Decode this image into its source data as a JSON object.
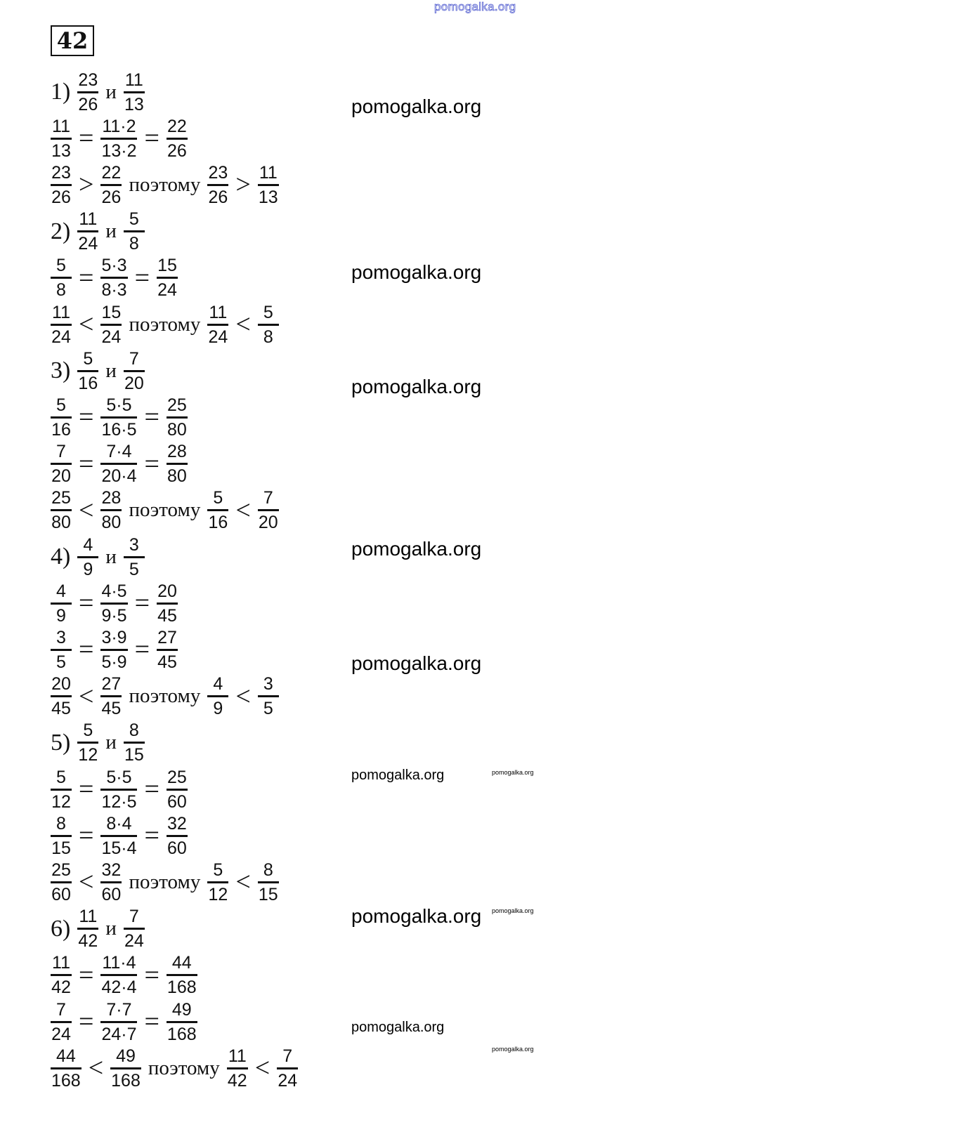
{
  "header_watermark": "pomogalka.org",
  "exercise_number": "42",
  "rows": [
    [
      {
        "t": "label",
        "v": "1)"
      },
      {
        "t": "frac",
        "n": "23",
        "d": "26"
      },
      {
        "t": "word",
        "v": "и"
      },
      {
        "t": "frac",
        "n": "11",
        "d": "13"
      }
    ],
    [
      {
        "t": "frac",
        "n": "11",
        "d": "13"
      },
      {
        "t": "op",
        "v": "="
      },
      {
        "t": "frac",
        "n": "11·2",
        "d": "13·2"
      },
      {
        "t": "op",
        "v": "="
      },
      {
        "t": "frac",
        "n": "22",
        "d": "26"
      }
    ],
    [
      {
        "t": "frac",
        "n": "23",
        "d": "26"
      },
      {
        "t": "op",
        "v": ">"
      },
      {
        "t": "frac",
        "n": "22",
        "d": "26"
      },
      {
        "t": "word",
        "v": "поэтому"
      },
      {
        "t": "frac",
        "n": "23",
        "d": "26"
      },
      {
        "t": "op",
        "v": ">"
      },
      {
        "t": "frac",
        "n": "11",
        "d": "13"
      }
    ],
    [
      {
        "t": "label",
        "v": "2)"
      },
      {
        "t": "frac",
        "n": "11",
        "d": "24"
      },
      {
        "t": "word",
        "v": "и"
      },
      {
        "t": "frac",
        "n": "5",
        "d": "8"
      }
    ],
    [
      {
        "t": "frac",
        "n": "5",
        "d": "8"
      },
      {
        "t": "op",
        "v": "="
      },
      {
        "t": "frac",
        "n": "5·3",
        "d": "8·3"
      },
      {
        "t": "op",
        "v": "="
      },
      {
        "t": "frac",
        "n": "15",
        "d": "24"
      }
    ],
    [
      {
        "t": "frac",
        "n": "11",
        "d": "24"
      },
      {
        "t": "op",
        "v": "<"
      },
      {
        "t": "frac",
        "n": "15",
        "d": "24"
      },
      {
        "t": "word",
        "v": "поэтому"
      },
      {
        "t": "frac",
        "n": "11",
        "d": "24"
      },
      {
        "t": "op",
        "v": "<"
      },
      {
        "t": "frac",
        "n": "5",
        "d": "8"
      }
    ],
    [
      {
        "t": "label",
        "v": "3)"
      },
      {
        "t": "frac",
        "n": "5",
        "d": "16"
      },
      {
        "t": "word",
        "v": "и"
      },
      {
        "t": "frac",
        "n": "7",
        "d": "20"
      }
    ],
    [
      {
        "t": "frac",
        "n": "5",
        "d": "16"
      },
      {
        "t": "op",
        "v": "="
      },
      {
        "t": "frac",
        "n": "5·5",
        "d": "16·5"
      },
      {
        "t": "op",
        "v": "="
      },
      {
        "t": "frac",
        "n": "25",
        "d": "80"
      }
    ],
    [
      {
        "t": "frac",
        "n": "7",
        "d": "20"
      },
      {
        "t": "op",
        "v": "="
      },
      {
        "t": "frac",
        "n": "7·4",
        "d": "20·4"
      },
      {
        "t": "op",
        "v": "="
      },
      {
        "t": "frac",
        "n": "28",
        "d": "80"
      }
    ],
    [
      {
        "t": "frac",
        "n": "25",
        "d": "80"
      },
      {
        "t": "op",
        "v": "<"
      },
      {
        "t": "frac",
        "n": "28",
        "d": "80"
      },
      {
        "t": "word",
        "v": "поэтому"
      },
      {
        "t": "frac",
        "n": "5",
        "d": "16"
      },
      {
        "t": "op",
        "v": "<"
      },
      {
        "t": "frac",
        "n": "7",
        "d": "20"
      }
    ],
    [
      {
        "t": "label",
        "v": "4)"
      },
      {
        "t": "frac",
        "n": "4",
        "d": "9"
      },
      {
        "t": "word",
        "v": "и"
      },
      {
        "t": "frac",
        "n": "3",
        "d": "5"
      }
    ],
    [
      {
        "t": "frac",
        "n": "4",
        "d": "9"
      },
      {
        "t": "op",
        "v": "="
      },
      {
        "t": "frac",
        "n": "4·5",
        "d": "9·5"
      },
      {
        "t": "op",
        "v": "="
      },
      {
        "t": "frac",
        "n": "20",
        "d": "45"
      }
    ],
    [
      {
        "t": "frac",
        "n": "3",
        "d": "5"
      },
      {
        "t": "op",
        "v": "="
      },
      {
        "t": "frac",
        "n": "3·9",
        "d": "5·9"
      },
      {
        "t": "op",
        "v": "="
      },
      {
        "t": "frac",
        "n": "27",
        "d": "45"
      }
    ],
    [
      {
        "t": "frac",
        "n": "20",
        "d": "45"
      },
      {
        "t": "op",
        "v": "<"
      },
      {
        "t": "frac",
        "n": "27",
        "d": "45"
      },
      {
        "t": "word",
        "v": "поэтому"
      },
      {
        "t": "frac",
        "n": "4",
        "d": "9"
      },
      {
        "t": "op",
        "v": "<"
      },
      {
        "t": "frac",
        "n": "3",
        "d": "5"
      }
    ],
    [
      {
        "t": "label",
        "v": "5)"
      },
      {
        "t": "frac",
        "n": "5",
        "d": "12"
      },
      {
        "t": "word",
        "v": "и"
      },
      {
        "t": "frac",
        "n": "8",
        "d": "15"
      }
    ],
    [
      {
        "t": "frac",
        "n": "5",
        "d": "12"
      },
      {
        "t": "op",
        "v": "="
      },
      {
        "t": "frac",
        "n": "5·5",
        "d": "12·5"
      },
      {
        "t": "op",
        "v": "="
      },
      {
        "t": "frac",
        "n": "25",
        "d": "60"
      }
    ],
    [
      {
        "t": "frac",
        "n": "8",
        "d": "15"
      },
      {
        "t": "op",
        "v": "="
      },
      {
        "t": "frac",
        "n": "8·4",
        "d": "15·4"
      },
      {
        "t": "op",
        "v": "="
      },
      {
        "t": "frac",
        "n": "32",
        "d": "60"
      }
    ],
    [
      {
        "t": "frac",
        "n": "25",
        "d": "60"
      },
      {
        "t": "op",
        "v": "<"
      },
      {
        "t": "frac",
        "n": "32",
        "d": "60"
      },
      {
        "t": "word",
        "v": "поэтому"
      },
      {
        "t": "frac",
        "n": "5",
        "d": "12"
      },
      {
        "t": "op",
        "v": "<"
      },
      {
        "t": "frac",
        "n": "8",
        "d": "15"
      }
    ],
    [
      {
        "t": "label",
        "v": "6)"
      },
      {
        "t": "frac",
        "n": "11",
        "d": "42"
      },
      {
        "t": "word",
        "v": "и"
      },
      {
        "t": "frac",
        "n": "7",
        "d": "24"
      }
    ],
    [
      {
        "t": "frac",
        "n": "11",
        "d": "42"
      },
      {
        "t": "op",
        "v": "="
      },
      {
        "t": "frac",
        "n": "11·4",
        "d": "42·4"
      },
      {
        "t": "op",
        "v": "="
      },
      {
        "t": "frac",
        "n": "44",
        "d": "168"
      }
    ],
    [
      {
        "t": "frac",
        "n": "7",
        "d": "24"
      },
      {
        "t": "op",
        "v": "="
      },
      {
        "t": "frac",
        "n": "7·7",
        "d": "24·7"
      },
      {
        "t": "op",
        "v": "="
      },
      {
        "t": "frac",
        "n": "49",
        "d": "168"
      }
    ],
    [
      {
        "t": "frac",
        "n": "44",
        "d": "168"
      },
      {
        "t": "op",
        "v": "<"
      },
      {
        "t": "frac",
        "n": "49",
        "d": "168"
      },
      {
        "t": "word",
        "v": "поэтому"
      },
      {
        "t": "frac",
        "n": "11",
        "d": "42"
      },
      {
        "t": "op",
        "v": "<"
      },
      {
        "t": "frac",
        "n": "7",
        "d": "24"
      }
    ]
  ],
  "watermarks": [
    "pomogalka.org",
    "pomogalka.org",
    "pomogalka.org",
    "pomogalka.org",
    "pomogalka.org",
    "pomogalka.org",
    "pomogalka.org",
    "pomogalka.org",
    "pomogalka.org",
    "pomogalka.org",
    "pomogalka.org"
  ]
}
